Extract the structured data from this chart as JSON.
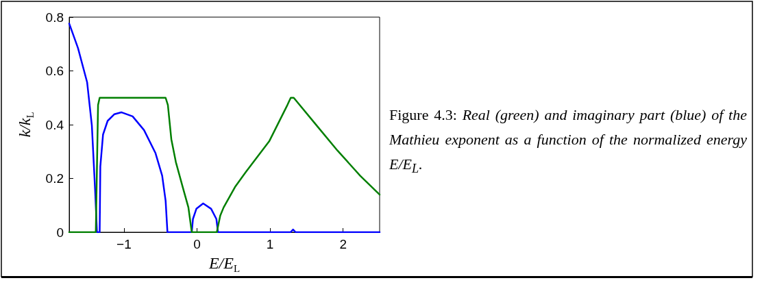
{
  "chart_data": {
    "type": "line",
    "xlabel": "E/E$_{L}$",
    "ylabel": "k/k$_{L}$",
    "xlim": [
      -1.75,
      2.5
    ],
    "xticks": [
      -1,
      0,
      1,
      2
    ],
    "ylim": [
      0,
      0.8
    ],
    "yticks": [
      0,
      0.2,
      0.4,
      0.6,
      0.8
    ],
    "grid": false,
    "marker": "none",
    "line_style": "solid",
    "annotations": [
      "Figure 4.3: Real (green) and imaginary part (blue) of the Mathieu exponent as a function of the normalized energy E/E$_{L}$."
    ],
    "series": [
      {
        "color": "#0000ff",
        "x": [
          -1.75,
          -1.63,
          -1.505,
          -1.44,
          -1.396,
          -1.37,
          -1.333,
          -1.324,
          -1.287,
          -1.224,
          -1.131,
          -1.037,
          -0.882,
          -0.726,
          -0.57,
          -0.477,
          -0.43,
          -0.405,
          -0.072,
          -0.056,
          -0.009,
          0.084,
          0.193,
          0.265,
          0.287,
          1.28,
          1.315,
          1.35,
          2.5
        ],
        "values": [
          0.776,
          0.685,
          0.558,
          0.397,
          0.16,
          0,
          0,
          0.244,
          0.363,
          0.414,
          0.439,
          0.446,
          0.431,
          0.38,
          0.295,
          0.21,
          0.117,
          0,
          0,
          0.049,
          0.087,
          0.107,
          0.087,
          0.049,
          0,
          0,
          0.01,
          0,
          0
        ]
      },
      {
        "color": "#007f00",
        "x": [
          -1.75,
          -1.386,
          -1.355,
          -1.333,
          -0.43,
          -0.399,
          -0.352,
          -0.29,
          -0.196,
          -0.118,
          -0.072,
          0.271,
          0.318,
          0.364,
          0.52,
          0.676,
          0.988,
          1.237,
          1.283,
          1.324,
          1.61,
          1.922,
          2.234,
          2.5
        ],
        "values": [
          0,
          0,
          0.473,
          0.5,
          0.5,
          0.473,
          0.346,
          0.261,
          0.168,
          0.092,
          0,
          0,
          0.062,
          0.092,
          0.168,
          0.227,
          0.338,
          0.473,
          0.5,
          0.5,
          0.406,
          0.304,
          0.21,
          0.14
        ]
      }
    ]
  }
}
